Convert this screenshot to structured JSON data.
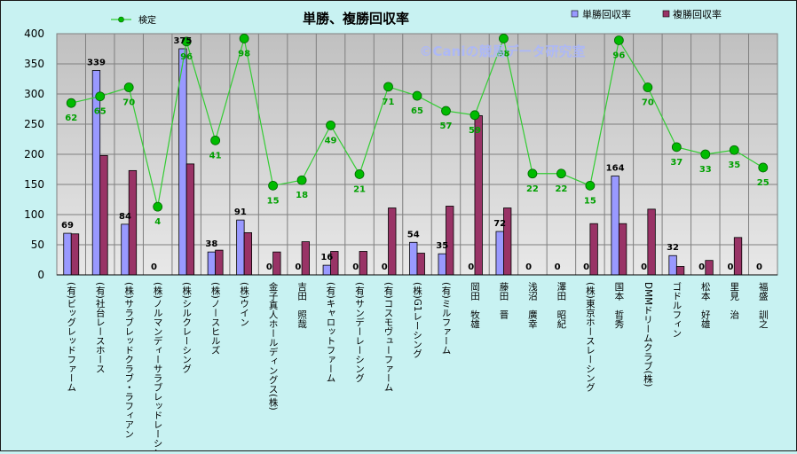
{
  "chart_data": {
    "type": "bar",
    "title": "単勝、複勝回収率",
    "watermark": "©Caniの競馬データ研究室",
    "ylim": [
      0,
      400
    ],
    "yticks": [
      0,
      50,
      100,
      150,
      200,
      250,
      300,
      350,
      400
    ],
    "grid": true,
    "legend_position": "top",
    "categories": [
      "(有)ビッグレッドファーム",
      "(有)社台レースホース",
      "(株)サラブレッドクラブ・ラフィアン",
      "(株)ノルマンディーサラブレッドレーシング",
      "(株)シルクレーシング",
      "(株)ノースヒルズ",
      "(株)ウイン",
      "金子真人ホールディングス(株)",
      "吉田　照哉",
      "(有)キャロットファーム",
      "(有)サンデーレーシング",
      "(有)コスモヴューファーム",
      "(株)G1レーシング",
      "(有)ミルファーム",
      "岡田　牧雄",
      "藤田　晋",
      "浅沼　廣幸",
      "澤田　昭紀",
      "(株)東京ホースレーシング",
      "国本　哲秀",
      "DMMドリームクラブ(株)",
      "ゴドルフィン",
      "松本　好雄",
      "里見　治",
      "福盛　訓之"
    ],
    "series": [
      {
        "name": "単勝回収率",
        "kind": "bar",
        "color": "#9999ff",
        "values": [
          69,
          339,
          84,
          0,
          375,
          38,
          91,
          0,
          0,
          16,
          0,
          0,
          54,
          35,
          0,
          72,
          0,
          0,
          0,
          164,
          0,
          32,
          0,
          0,
          0
        ]
      },
      {
        "name": "複勝回収率",
        "kind": "bar",
        "color": "#993366",
        "values": [
          68,
          198,
          173,
          0,
          184,
          41,
          70,
          38,
          55,
          39,
          39,
          111,
          36,
          114,
          264,
          111,
          0,
          0,
          85,
          85,
          109,
          14,
          24,
          62,
          0
        ]
      },
      {
        "name": "検定",
        "kind": "line",
        "color": "#33cc33",
        "values": [
          285,
          296,
          311,
          113,
          387,
          223,
          392,
          148,
          157,
          248,
          167,
          312,
          297,
          272,
          265,
          392,
          168,
          168,
          148,
          389,
          311,
          212,
          200,
          207,
          178
        ],
        "labels": [
          62,
          65,
          70,
          4,
          96,
          41,
          98,
          15,
          18,
          49,
          21,
          71,
          65,
          57,
          59,
          98,
          22,
          22,
          15,
          96,
          70,
          37,
          33,
          35,
          25
        ]
      }
    ]
  }
}
